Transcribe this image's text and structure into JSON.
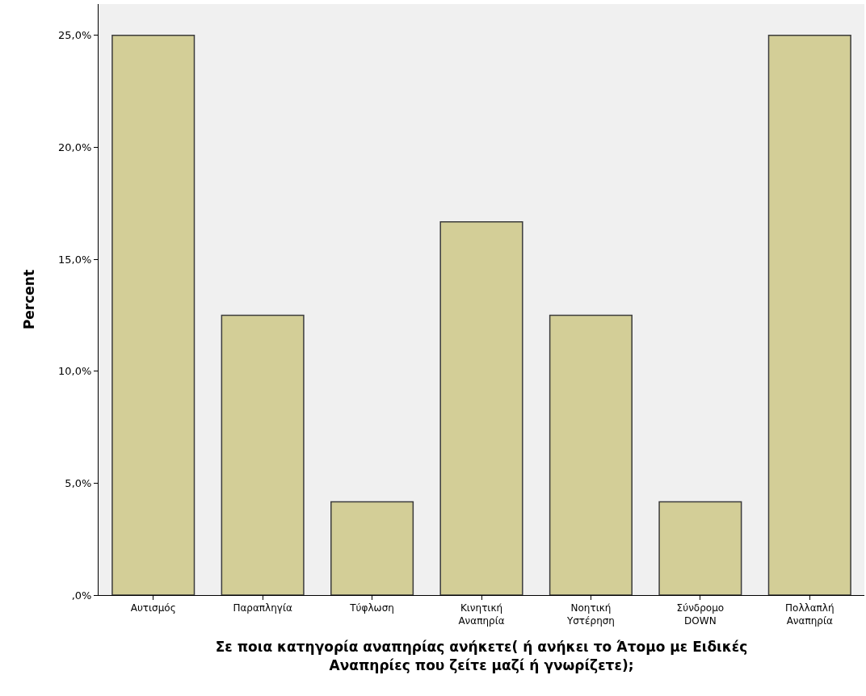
{
  "chart_data": {
    "type": "bar",
    "xlabel": "Σε ποια κατηγορία αναπηρίας ανήκετε( ή ανήκει το Άτομο με Ειδικές\nΑναπηρίες που ζείτε μαζί ή γνωρίζετε);",
    "ylabel": "Percent",
    "categories": [
      "Αυτισμός",
      "Παραπληγία",
      "Τύφλωση",
      "Κινητική\nΑναπηρία",
      "Νοητική\nΥστέρηση",
      "Σύνδρομο\nDOWN",
      "Πολλαπλή\nΑναπηρία"
    ],
    "values": [
      25.0,
      12.5,
      4.17,
      16.67,
      12.5,
      4.17,
      25.0
    ],
    "color": "#d3ce97",
    "ylim": [
      0,
      26.4
    ],
    "yticks": [
      {
        "value": 0,
        "label": ",0%"
      },
      {
        "value": 5,
        "label": "5,0%"
      },
      {
        "value": 10,
        "label": "10,0%"
      },
      {
        "value": 15,
        "label": "15,0%"
      },
      {
        "value": 20,
        "label": "20,0%"
      },
      {
        "value": 25,
        "label": "25,0%"
      }
    ],
    "grid": false,
    "legend": false
  }
}
